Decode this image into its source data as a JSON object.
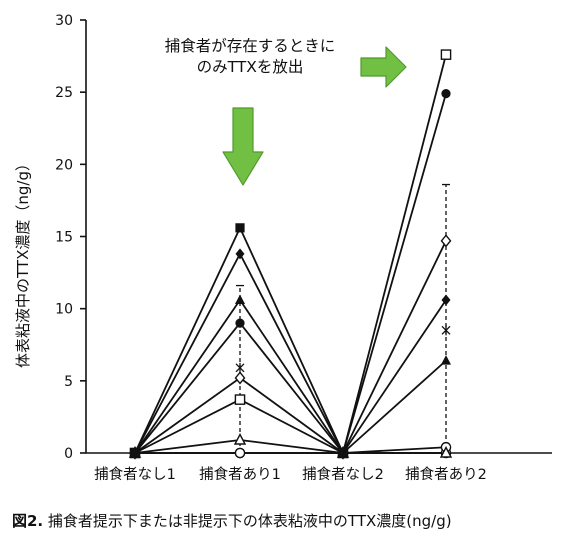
{
  "caption": {
    "label": "図2.",
    "text": "捕食者提示下または非提示下の体表粘液中のTTX濃度(ng/g)"
  },
  "annotation": {
    "line1": "捕食者が存在するときに",
    "line2": "のみTTXを放出",
    "arrow_color": "#72c043",
    "arrow_stroke": "#4e9a2c",
    "arrows": [
      "right-arrow",
      "down-arrow"
    ]
  },
  "chart_data": {
    "type": "line",
    "categories": [
      "捕食者なし1",
      "捕食者あり1",
      "捕食者なし2",
      "捕食者あり2"
    ],
    "ylabel": "体表粘液中のTTX濃度（ng/g）",
    "xlabel": "",
    "ylim": [
      0,
      30
    ],
    "yticks": [
      0,
      5,
      10,
      15,
      20,
      25,
      30
    ],
    "grid": false,
    "series": [
      {
        "marker": "square-filled",
        "values": [
          0,
          15.6,
          0,
          null
        ]
      },
      {
        "marker": "diamond-filled",
        "values": [
          0,
          13.8,
          0,
          10.6
        ]
      },
      {
        "marker": "triangle-filled",
        "values": [
          0,
          10.6,
          0,
          6.4
        ]
      },
      {
        "marker": "circle-filled",
        "values": [
          0,
          9.0,
          0,
          24.9
        ]
      },
      {
        "marker": "diamond-open",
        "values": [
          0,
          5.2,
          0,
          14.7
        ]
      },
      {
        "marker": "square-open",
        "values": [
          0,
          3.7,
          0,
          27.6
        ]
      },
      {
        "marker": "triangle-open",
        "values": [
          0,
          0.9,
          0,
          0
        ]
      },
      {
        "marker": "circle-open",
        "values": [
          0,
          0,
          0,
          0.4
        ]
      },
      {
        "marker": "circle-plus",
        "values": [
          0,
          0,
          0,
          0
        ]
      }
    ],
    "mean": {
      "marker": "star",
      "values": [
        null,
        5.9,
        null,
        8.5
      ]
    },
    "error_bars": [
      {
        "category": "捕食者あり1",
        "low": 0,
        "high": 11.6
      },
      {
        "category": "捕食者あり2",
        "low": 0,
        "high": 18.6
      }
    ]
  }
}
